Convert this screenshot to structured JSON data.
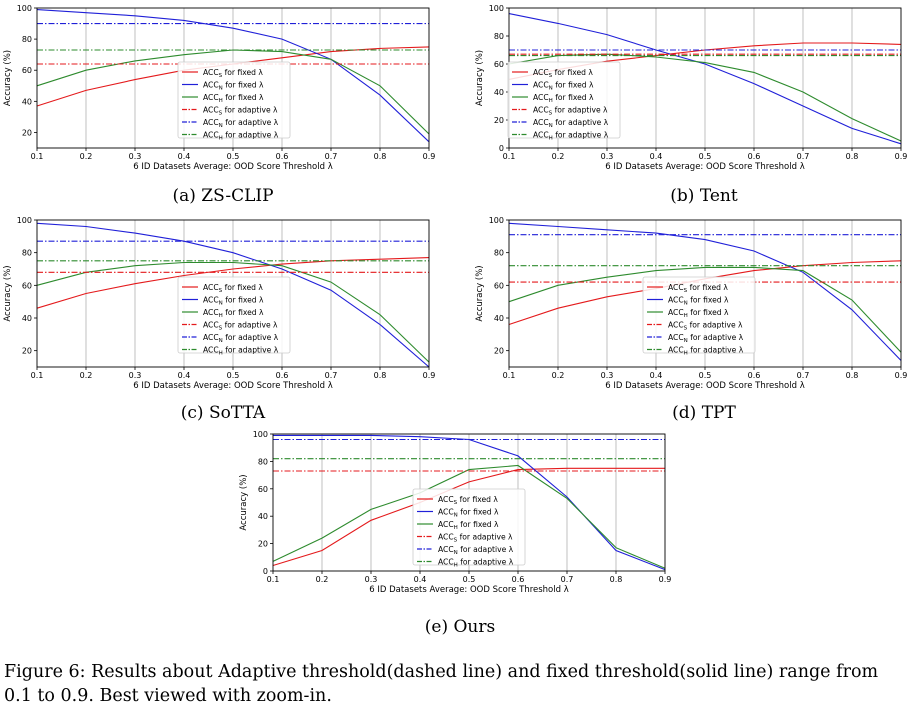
{
  "figure": {
    "caption_line1": "Figure 6: Results about Adaptive threshold(dashed line) and fixed threshold(solid line) range from",
    "caption_line2": "0.1 to 0.9. Best viewed with zoom-in."
  },
  "chart_data": [
    {
      "id": "a",
      "type": "line",
      "subcaption": "(a) ZS-CLIP",
      "xlabel": "6 ID Datasets Average: OOD Score Threshold λ",
      "ylabel": "Accuracy (%)",
      "x": [
        0.1,
        0.2,
        0.3,
        0.4,
        0.5,
        0.6,
        0.7,
        0.8,
        0.9
      ],
      "xlim": [
        0.1,
        0.9
      ],
      "ylim": [
        10,
        100
      ],
      "yticks": [
        20,
        40,
        60,
        80,
        100
      ],
      "series": [
        {
          "name": "ACCS for fixed λ",
          "label_main": "ACC",
          "label_sub": "S",
          "label_rest": " for fixed λ",
          "color": "#e41a1c",
          "style": "solid",
          "values": [
            37,
            47,
            54,
            60,
            64,
            68,
            72,
            74,
            75
          ]
        },
        {
          "name": "ACCN for fixed λ",
          "label_main": "ACC",
          "label_sub": "N",
          "label_rest": " for fixed λ",
          "color": "#2020d8",
          "style": "solid",
          "values": [
            99,
            97,
            95,
            92,
            87,
            80,
            67,
            44,
            14
          ]
        },
        {
          "name": "ACCH for fixed λ",
          "label_main": "ACC",
          "label_sub": "H",
          "label_rest": " for fixed λ",
          "color": "#2e8b2e",
          "style": "solid",
          "values": [
            50,
            60,
            66,
            70,
            73,
            72,
            67,
            50,
            19
          ]
        },
        {
          "name": "ACCS for adaptive λ",
          "label_main": "ACC",
          "label_sub": "S",
          "label_rest": " for adaptive λ",
          "color": "#e41a1c",
          "style": "dashed",
          "values": [
            64,
            64,
            64,
            64,
            64,
            64,
            64,
            64,
            64
          ]
        },
        {
          "name": "ACCN for adaptive λ",
          "label_main": "ACC",
          "label_sub": "N",
          "label_rest": " for adaptive λ",
          "color": "#2020d8",
          "style": "dashed",
          "values": [
            90,
            90,
            90,
            90,
            90,
            90,
            90,
            90,
            90
          ]
        },
        {
          "name": "ACCH for adaptive λ",
          "label_main": "ACC",
          "label_sub": "H",
          "label_rest": " for adaptive λ",
          "color": "#2e8b2e",
          "style": "dashed",
          "values": [
            73,
            73,
            73,
            73,
            73,
            73,
            73,
            73,
            73
          ]
        }
      ]
    },
    {
      "id": "b",
      "type": "line",
      "subcaption": "(b) Tent",
      "xlabel": "6 ID Datasets Average: OOD Score Threshold λ",
      "ylabel": "Accuracy (%)",
      "x": [
        0.1,
        0.2,
        0.3,
        0.4,
        0.5,
        0.6,
        0.7,
        0.8,
        0.9
      ],
      "xlim": [
        0.1,
        0.9
      ],
      "ylim": [
        0,
        100
      ],
      "yticks": [
        0,
        20,
        40,
        60,
        80,
        100
      ],
      "series": [
        {
          "name": "ACCS for fixed λ",
          "label_main": "ACC",
          "label_sub": "S",
          "label_rest": " for fixed λ",
          "color": "#e41a1c",
          "style": "solid",
          "values": [
            49,
            56,
            62,
            66,
            70,
            73,
            75,
            75,
            74
          ]
        },
        {
          "name": "ACCN for fixed λ",
          "label_main": "ACC",
          "label_sub": "N",
          "label_rest": " for fixed λ",
          "color": "#2020d8",
          "style": "solid",
          "values": [
            96,
            89,
            81,
            70,
            60,
            46,
            30,
            14,
            3
          ]
        },
        {
          "name": "ACCH for fixed λ",
          "label_main": "ACC",
          "label_sub": "H",
          "label_rest": " for fixed λ",
          "color": "#2e8b2e",
          "style": "solid",
          "values": [
            60,
            66,
            67,
            65,
            61,
            54,
            40,
            21,
            5
          ]
        },
        {
          "name": "ACCS for adaptive λ",
          "label_main": "ACC",
          "label_sub": "S",
          "label_rest": " for adaptive λ",
          "color": "#e41a1c",
          "style": "dashed",
          "values": [
            67,
            67,
            67,
            67,
            67,
            67,
            67,
            67,
            67
          ]
        },
        {
          "name": "ACCN for adaptive λ",
          "label_main": "ACC",
          "label_sub": "N",
          "label_rest": " for adaptive λ",
          "color": "#2020d8",
          "style": "dashed",
          "values": [
            70,
            70,
            70,
            70,
            70,
            70,
            70,
            70,
            70
          ]
        },
        {
          "name": "ACCH for adaptive λ",
          "label_main": "ACC",
          "label_sub": "H",
          "label_rest": " for adaptive λ",
          "color": "#2e8b2e",
          "style": "dashed",
          "values": [
            66,
            66,
            66,
            66,
            66,
            66,
            66,
            66,
            66
          ]
        }
      ]
    },
    {
      "id": "c",
      "type": "line",
      "subcaption": "(c) SoTTA",
      "xlabel": "6 ID Datasets Average: OOD Score Threshold λ",
      "ylabel": "Accuracy (%)",
      "x": [
        0.1,
        0.2,
        0.3,
        0.4,
        0.5,
        0.6,
        0.7,
        0.8,
        0.9
      ],
      "xlim": [
        0.1,
        0.9
      ],
      "ylim": [
        10,
        100
      ],
      "yticks": [
        20,
        40,
        60,
        80,
        100
      ],
      "series": [
        {
          "name": "ACCS for fixed λ",
          "label_main": "ACC",
          "label_sub": "S",
          "label_rest": " for fixed λ",
          "color": "#e41a1c",
          "style": "solid",
          "values": [
            46,
            55,
            61,
            66,
            70,
            73,
            75,
            76,
            77
          ]
        },
        {
          "name": "ACCN for fixed λ",
          "label_main": "ACC",
          "label_sub": "N",
          "label_rest": " for fixed λ",
          "color": "#2020d8",
          "style": "solid",
          "values": [
            98,
            96,
            92,
            87,
            80,
            70,
            57,
            36,
            10
          ]
        },
        {
          "name": "ACCH for fixed λ",
          "label_main": "ACC",
          "label_sub": "H",
          "label_rest": " for fixed λ",
          "color": "#2e8b2e",
          "style": "solid",
          "values": [
            60,
            68,
            72,
            74,
            74,
            72,
            62,
            42,
            13
          ]
        },
        {
          "name": "ACCS for adaptive λ",
          "label_main": "ACC",
          "label_sub": "S",
          "label_rest": " for adaptive λ",
          "color": "#e41a1c",
          "style": "dashed",
          "values": [
            68,
            68,
            68,
            68,
            68,
            68,
            68,
            68,
            68
          ]
        },
        {
          "name": "ACCN for adaptive λ",
          "label_main": "ACC",
          "label_sub": "N",
          "label_rest": " for adaptive λ",
          "color": "#2020d8",
          "style": "dashed",
          "values": [
            87,
            87,
            87,
            87,
            87,
            87,
            87,
            87,
            87
          ]
        },
        {
          "name": "ACCH for adaptive λ",
          "label_main": "ACC",
          "label_sub": "H",
          "label_rest": " for adaptive λ",
          "color": "#2e8b2e",
          "style": "dashed",
          "values": [
            75,
            75,
            75,
            75,
            75,
            75,
            75,
            75,
            75
          ]
        }
      ]
    },
    {
      "id": "d",
      "type": "line",
      "subcaption": "(d) TPT",
      "xlabel": "6 ID Datasets Average: OOD Score Threshold λ",
      "ylabel": "Accuracy (%)",
      "x": [
        0.1,
        0.2,
        0.3,
        0.4,
        0.5,
        0.6,
        0.7,
        0.8,
        0.9
      ],
      "xlim": [
        0.1,
        0.9
      ],
      "ylim": [
        10,
        100
      ],
      "yticks": [
        20,
        40,
        60,
        80,
        100
      ],
      "series": [
        {
          "name": "ACCS for fixed λ",
          "label_main": "ACC",
          "label_sub": "S",
          "label_rest": " for fixed λ",
          "color": "#e41a1c",
          "style": "solid",
          "values": [
            36,
            46,
            53,
            58,
            64,
            69,
            72,
            74,
            75
          ]
        },
        {
          "name": "ACCN for fixed λ",
          "label_main": "ACC",
          "label_sub": "N",
          "label_rest": " for fixed λ",
          "color": "#2020d8",
          "style": "solid",
          "values": [
            98,
            96,
            94,
            92,
            88,
            81,
            68,
            45,
            14
          ]
        },
        {
          "name": "ACCH for fixed λ",
          "label_main": "ACC",
          "label_sub": "H",
          "label_rest": " for fixed λ",
          "color": "#2e8b2e",
          "style": "solid",
          "values": [
            50,
            60,
            65,
            69,
            71,
            71,
            69,
            51,
            19
          ]
        },
        {
          "name": "ACCS for adaptive λ",
          "label_main": "ACC",
          "label_sub": "S",
          "label_rest": " for adaptive λ",
          "color": "#e41a1c",
          "style": "dashed",
          "values": [
            62,
            62,
            62,
            62,
            62,
            62,
            62,
            62,
            62
          ]
        },
        {
          "name": "ACCN for adaptive λ",
          "label_main": "ACC",
          "label_sub": "N",
          "label_rest": " for adaptive λ",
          "color": "#2020d8",
          "style": "dashed",
          "values": [
            91,
            91,
            91,
            91,
            91,
            91,
            91,
            91,
            91
          ]
        },
        {
          "name": "ACCH for adaptive λ",
          "label_main": "ACC",
          "label_sub": "H",
          "label_rest": " for adaptive λ",
          "color": "#2e8b2e",
          "style": "dashed",
          "values": [
            72,
            72,
            72,
            72,
            72,
            72,
            72,
            72,
            72
          ]
        }
      ]
    },
    {
      "id": "e",
      "type": "line",
      "subcaption": "(e) Ours",
      "xlabel": "6 ID Datasets Average: OOD Score Threshold λ",
      "ylabel": "Accuracy (%)",
      "x": [
        0.1,
        0.2,
        0.3,
        0.4,
        0.5,
        0.6,
        0.7,
        0.8,
        0.9
      ],
      "xlim": [
        0.1,
        0.9
      ],
      "ylim": [
        0,
        100
      ],
      "yticks": [
        0,
        20,
        40,
        60,
        80,
        100
      ],
      "series": [
        {
          "name": "ACCS for fixed λ",
          "label_main": "ACC",
          "label_sub": "S",
          "label_rest": " for fixed λ",
          "color": "#e41a1c",
          "style": "solid",
          "values": [
            4,
            15,
            37,
            50,
            65,
            74,
            75,
            75,
            75
          ]
        },
        {
          "name": "ACCN for fixed λ",
          "label_main": "ACC",
          "label_sub": "N",
          "label_rest": " for fixed λ",
          "color": "#2020d8",
          "style": "solid",
          "values": [
            99,
            99,
            99,
            98,
            96,
            84,
            54,
            15,
            1
          ]
        },
        {
          "name": "ACCH for fixed λ",
          "label_main": "ACC",
          "label_sub": "H",
          "label_rest": " for fixed λ",
          "color": "#2e8b2e",
          "style": "solid",
          "values": [
            7,
            24,
            45,
            57,
            74,
            77,
            53,
            17,
            2
          ]
        },
        {
          "name": "ACCS for adaptive λ",
          "label_main": "ACC",
          "label_sub": "S",
          "label_rest": " for adaptive λ",
          "color": "#e41a1c",
          "style": "dashed",
          "values": [
            73,
            73,
            73,
            73,
            73,
            73,
            73,
            73,
            73
          ]
        },
        {
          "name": "ACCN for adaptive λ",
          "label_main": "ACC",
          "label_sub": "N",
          "label_rest": " for adaptive λ",
          "color": "#2020d8",
          "style": "dashed",
          "values": [
            96,
            96,
            96,
            96,
            96,
            96,
            96,
            96,
            96
          ]
        },
        {
          "name": "ACCH for adaptive λ",
          "label_main": "ACC",
          "label_sub": "H",
          "label_rest": " for adaptive λ",
          "color": "#2e8b2e",
          "style": "dashed",
          "values": [
            82,
            82,
            82,
            82,
            82,
            82,
            82,
            82,
            82
          ]
        }
      ]
    }
  ]
}
